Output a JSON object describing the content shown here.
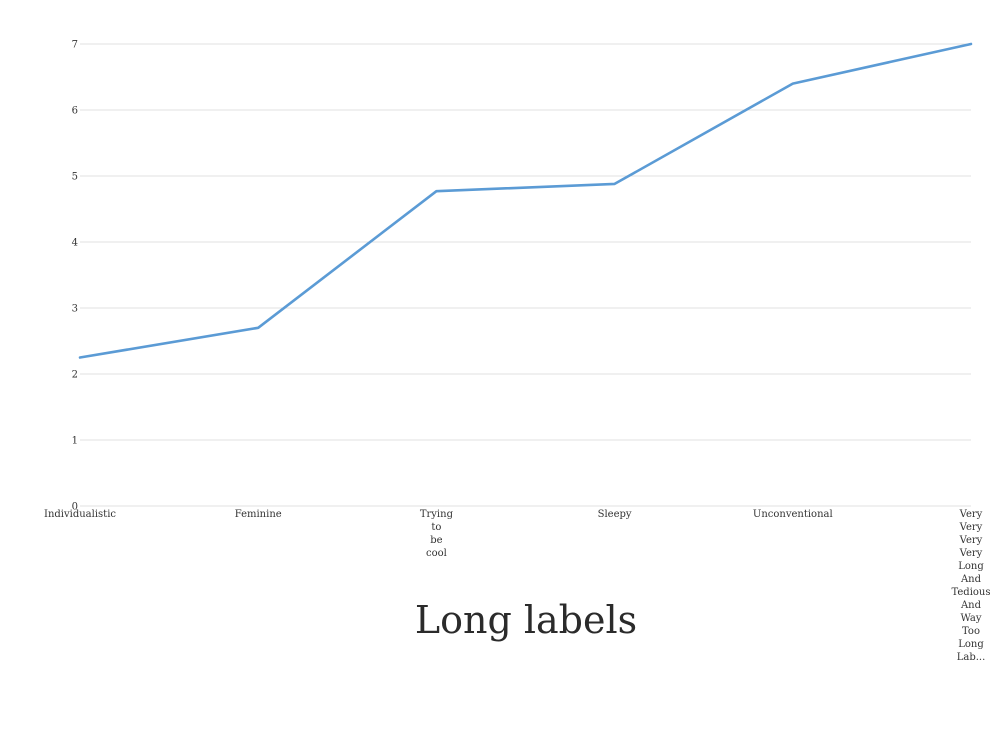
{
  "chart_data": {
    "type": "line",
    "title": "Long labels",
    "xlabel": "",
    "ylabel": "",
    "categories": [
      "Individualistic",
      "Feminine",
      "Trying to be cool",
      "Sleepy",
      "Unconventional",
      "Very Very Very Very Long And Tedious And Way Too Long Lab..."
    ],
    "series": [
      {
        "values": [
          2.25,
          2.7,
          4.77,
          4.88,
          6.4,
          7.0
        ],
        "color": "#5b9bd5"
      }
    ],
    "ylim": [
      0,
      7
    ],
    "yticks": [
      0,
      1,
      2,
      3,
      4,
      5,
      6,
      7
    ],
    "grid": true,
    "legend": "none"
  }
}
